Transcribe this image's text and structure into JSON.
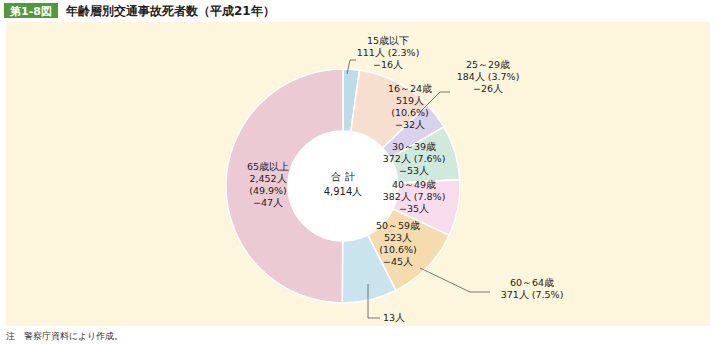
{
  "chart_data": {
    "type": "pie",
    "figure_label": "第1-8図",
    "title": "年齢層別交通事故死者数（平成21年）",
    "categories": [
      "15歳以下",
      "16～24歳",
      "25～29歳",
      "30～39歳",
      "40～49歳",
      "50～59歳",
      "60～64歳",
      "65歳以上"
    ],
    "values": [
      111,
      519,
      184,
      372,
      382,
      523,
      371,
      2452
    ],
    "value_labels": [
      "111人",
      "519人",
      "184人",
      "372人",
      "382人",
      "523人",
      "371人",
      "2,452人"
    ],
    "percent_labels": [
      "(2.3%)",
      "(10.6%)",
      "(3.7%)",
      "(7.6%)",
      "(7.8%)",
      "(10.6%)",
      "(7.5%)",
      "(49.9%)"
    ],
    "change_labels": [
      "−16人",
      "−32人",
      "−26人",
      "−53人",
      "−35人",
      "−45人",
      "13人",
      "−47人"
    ],
    "colors": [
      "#bcdcea",
      "#f7dfcf",
      "#d9d2ec",
      "#d1e9dd",
      "#f8dcec",
      "#f5dcae",
      "#c9e4ed",
      "#eccad3"
    ],
    "center_label": "合 計",
    "total": 4914,
    "total_label": "4,914人",
    "data_labels": true,
    "note": "注　警察庁資料により作成。"
  }
}
